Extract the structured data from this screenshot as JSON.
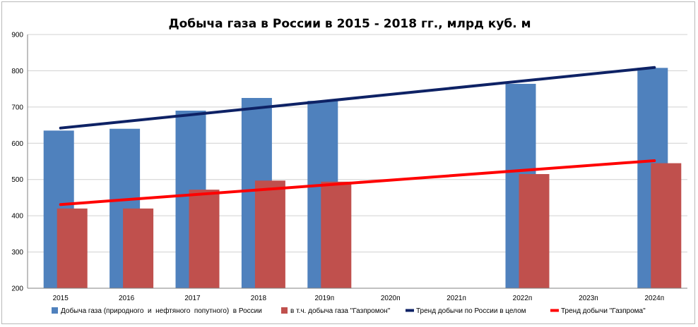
{
  "chart_data": {
    "type": "bar",
    "title": "Добыча газа в России в 2015 - 2018 гг., млрд куб. м",
    "xlabel": "",
    "ylabel": "",
    "ylim": [
      200,
      900
    ],
    "yticks": [
      200,
      300,
      400,
      500,
      600,
      700,
      800,
      900
    ],
    "grid": true,
    "legend_position": "bottom",
    "categories": [
      "2015",
      "2016",
      "2017",
      "2018",
      "2019п",
      "2020п",
      "2021п",
      "2022п",
      "2023п",
      "2024п"
    ],
    "series": [
      {
        "name": "Добыча газа (природного  и  нефтяного  попутного)  в России",
        "kind": "bar",
        "color": "#4f81bd",
        "values": [
          635,
          640,
          690,
          725,
          717,
          null,
          null,
          764,
          null,
          808
        ]
      },
      {
        "name": "в т.ч. добыча газа \"Газпромон\"",
        "kind": "bar",
        "color": "#c0504d",
        "values": [
          420,
          420,
          472,
          497,
          494,
          null,
          null,
          515,
          null,
          545
        ]
      },
      {
        "name": "Тренд добычи по России в целом",
        "kind": "line",
        "color": "#0e2265",
        "start": {
          "category": "2015",
          "value": 642
        },
        "end": {
          "category": "2024п",
          "value": 809
        }
      },
      {
        "name": "Тренд добычи \"Газпрома\"",
        "kind": "line",
        "color": "#ff0000",
        "start": {
          "category": "2015",
          "value": 431
        },
        "end": {
          "category": "2024п",
          "value": 552
        }
      }
    ]
  }
}
